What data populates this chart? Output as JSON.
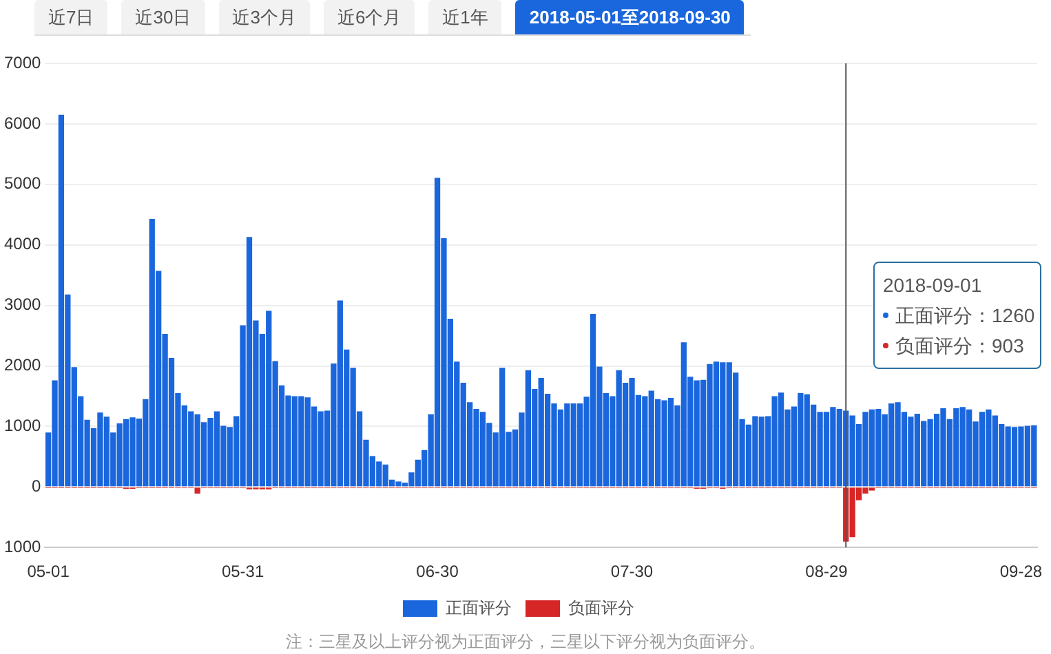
{
  "chart_data": {
    "type": "bar",
    "x": [
      "2018-05-01",
      "2018-05-02",
      "2018-05-03",
      "2018-05-04",
      "2018-05-05",
      "2018-05-06",
      "2018-05-07",
      "2018-05-08",
      "2018-05-09",
      "2018-05-10",
      "2018-05-11",
      "2018-05-12",
      "2018-05-13",
      "2018-05-14",
      "2018-05-15",
      "2018-05-16",
      "2018-05-17",
      "2018-05-18",
      "2018-05-19",
      "2018-05-20",
      "2018-05-21",
      "2018-05-22",
      "2018-05-23",
      "2018-05-24",
      "2018-05-25",
      "2018-05-26",
      "2018-05-27",
      "2018-05-28",
      "2018-05-29",
      "2018-05-30",
      "2018-05-31",
      "2018-06-01",
      "2018-06-02",
      "2018-06-03",
      "2018-06-04",
      "2018-06-05",
      "2018-06-06",
      "2018-06-07",
      "2018-06-08",
      "2018-06-09",
      "2018-06-10",
      "2018-06-11",
      "2018-06-12",
      "2018-06-13",
      "2018-06-14",
      "2018-06-15",
      "2018-06-16",
      "2018-06-17",
      "2018-06-18",
      "2018-06-19",
      "2018-06-20",
      "2018-06-21",
      "2018-06-22",
      "2018-06-23",
      "2018-06-24",
      "2018-06-25",
      "2018-06-26",
      "2018-06-27",
      "2018-06-28",
      "2018-06-29",
      "2018-06-30",
      "2018-07-01",
      "2018-07-02",
      "2018-07-03",
      "2018-07-04",
      "2018-07-05",
      "2018-07-06",
      "2018-07-07",
      "2018-07-08",
      "2018-07-09",
      "2018-07-10",
      "2018-07-11",
      "2018-07-12",
      "2018-07-13",
      "2018-07-14",
      "2018-07-15",
      "2018-07-16",
      "2018-07-17",
      "2018-07-18",
      "2018-07-19",
      "2018-07-20",
      "2018-07-21",
      "2018-07-22",
      "2018-07-23",
      "2018-07-24",
      "2018-07-25",
      "2018-07-26",
      "2018-07-27",
      "2018-07-28",
      "2018-07-29",
      "2018-07-30",
      "2018-07-31",
      "2018-08-01",
      "2018-08-02",
      "2018-08-03",
      "2018-08-04",
      "2018-08-05",
      "2018-08-06",
      "2018-08-07",
      "2018-08-08",
      "2018-08-09",
      "2018-08-10",
      "2018-08-11",
      "2018-08-12",
      "2018-08-13",
      "2018-08-14",
      "2018-08-15",
      "2018-08-16",
      "2018-08-17",
      "2018-08-18",
      "2018-08-19",
      "2018-08-20",
      "2018-08-21",
      "2018-08-22",
      "2018-08-23",
      "2018-08-24",
      "2018-08-25",
      "2018-08-26",
      "2018-08-27",
      "2018-08-28",
      "2018-08-29",
      "2018-08-30",
      "2018-08-31",
      "2018-09-01",
      "2018-09-02",
      "2018-09-03",
      "2018-09-04",
      "2018-09-05",
      "2018-09-06",
      "2018-09-07",
      "2018-09-08",
      "2018-09-09",
      "2018-09-10",
      "2018-09-11",
      "2018-09-12",
      "2018-09-13",
      "2018-09-14",
      "2018-09-15",
      "2018-09-16",
      "2018-09-17",
      "2018-09-18",
      "2018-09-19",
      "2018-09-20",
      "2018-09-21",
      "2018-09-22",
      "2018-09-23",
      "2018-09-24",
      "2018-09-25",
      "2018-09-26",
      "2018-09-27",
      "2018-09-28",
      "2018-09-29",
      "2018-09-30"
    ],
    "series": [
      {
        "name": "正面评分",
        "color": "#1a66dd",
        "values": [
          900,
          1760,
          6150,
          3180,
          1980,
          1500,
          1110,
          970,
          1230,
          1160,
          900,
          1050,
          1120,
          1150,
          1130,
          1450,
          4430,
          3570,
          2530,
          2130,
          1550,
          1350,
          1250,
          1200,
          1070,
          1140,
          1250,
          1010,
          990,
          1170,
          2670,
          4130,
          2750,
          2530,
          2910,
          2080,
          1680,
          1510,
          1500,
          1500,
          1480,
          1330,
          1250,
          1260,
          2040,
          3080,
          2270,
          1970,
          1250,
          780,
          510,
          420,
          370,
          120,
          90,
          70,
          240,
          450,
          610,
          1200,
          5110,
          4110,
          2780,
          2070,
          1720,
          1400,
          1290,
          1240,
          1060,
          900,
          1970,
          910,
          950,
          1230,
          1930,
          1620,
          1800,
          1540,
          1380,
          1280,
          1380,
          1380,
          1380,
          1490,
          2860,
          1990,
          1550,
          1500,
          1930,
          1720,
          1800,
          1520,
          1500,
          1590,
          1450,
          1430,
          1470,
          1350,
          2390,
          1820,
          1760,
          1770,
          2030,
          2070,
          2060,
          2060,
          1890,
          1120,
          1030,
          1170,
          1160,
          1170,
          1500,
          1560,
          1280,
          1330,
          1550,
          1530,
          1360,
          1240,
          1240,
          1320,
          1290,
          1260,
          1180,
          1040,
          1240,
          1280,
          1290,
          1200,
          1380,
          1400,
          1240,
          1160,
          1210,
          1090,
          1120,
          1210,
          1300,
          1120,
          1300,
          1320,
          1280,
          1080,
          1240,
          1280,
          1180,
          1040,
          1000,
          990,
          1000,
          1010,
          1020
        ]
      },
      {
        "name": "负面评分",
        "color": "#d62626",
        "values": [
          -20,
          -20,
          -20,
          -20,
          -20,
          -20,
          -20,
          -20,
          -20,
          -20,
          -20,
          -20,
          -30,
          -30,
          -20,
          -20,
          -20,
          -20,
          -20,
          -20,
          -20,
          -20,
          -20,
          -110,
          -20,
          -20,
          -20,
          -20,
          -20,
          -20,
          -20,
          -40,
          -40,
          -40,
          -40,
          -20,
          -20,
          -20,
          -20,
          -20,
          -20,
          -20,
          -20,
          -20,
          -20,
          -20,
          -20,
          -20,
          -20,
          -20,
          -20,
          -20,
          -20,
          -20,
          -20,
          -20,
          -20,
          -20,
          -20,
          -20,
          -20,
          -20,
          -20,
          -20,
          -20,
          -20,
          -20,
          -20,
          -20,
          -20,
          -20,
          -20,
          -20,
          -20,
          -20,
          -20,
          -20,
          -20,
          -20,
          -20,
          -20,
          -20,
          -20,
          -20,
          -20,
          -20,
          -20,
          -20,
          -20,
          -20,
          -20,
          -20,
          -20,
          -20,
          -20,
          -20,
          -20,
          -20,
          -20,
          -20,
          -30,
          -30,
          -20,
          -20,
          -30,
          -20,
          -20,
          -20,
          -20,
          -20,
          -20,
          -20,
          -20,
          -20,
          -20,
          -20,
          -20,
          -20,
          -20,
          -20,
          -20,
          -20,
          -20,
          -903,
          -830,
          -220,
          -110,
          -60,
          -20,
          -20,
          -20,
          -20,
          -20,
          -20,
          -20,
          -20,
          -20,
          -20,
          -20,
          -20,
          -20,
          -20,
          -20,
          -20,
          -20,
          -20,
          -20,
          -20,
          -20,
          -20,
          -20,
          -20,
          -20
        ]
      }
    ],
    "xlim": [
      "2018-04-30T12:00",
      "2018-09-30T12:00"
    ],
    "xticks": [
      {
        "value": "2018-05-01",
        "label": "05-01"
      },
      {
        "value": "2018-05-31",
        "label": "05-31"
      },
      {
        "value": "2018-06-30",
        "label": "06-30"
      },
      {
        "value": "2018-07-30",
        "label": "07-30"
      },
      {
        "value": "2018-08-29",
        "label": "08-29"
      },
      {
        "value": "2018-09-28",
        "label": "09-28"
      }
    ],
    "ylim": [
      -1000,
      7000
    ],
    "yticks": [
      {
        "value": -1000,
        "label": "1000"
      },
      0,
      1000,
      2000,
      3000,
      4000,
      5000,
      6000,
      7000
    ],
    "grid": "y",
    "legend": "bottom",
    "ref_lines": [
      {
        "axis": "x",
        "value": "2018-09-01",
        "color": "#555555"
      }
    ],
    "annotations": [
      "近7日",
      "近30日",
      "近3个月",
      "近6个月",
      "近1年",
      "2018-05-01至2018-09-30",
      "2018-09-01",
      "正面评分：1260",
      "负面评分：903",
      "注：三星及以上评分视为正面评分，三星以下评分视为负面评分。"
    ]
  }
}
